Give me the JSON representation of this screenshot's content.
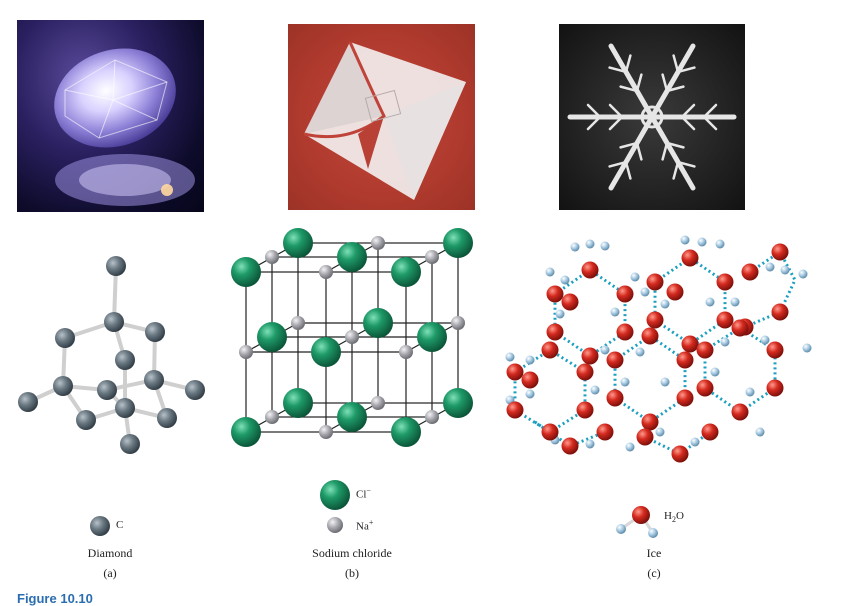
{
  "panels": {
    "a": {
      "name": "Diamond",
      "letter": "(a)",
      "legend": [
        {
          "symbol": "C",
          "color": "#5d6b75"
        }
      ]
    },
    "b": {
      "name": "Sodium chloride",
      "letter": "(b)",
      "legend": [
        {
          "symbol": "Cl",
          "charge": "−",
          "color": "#1f8f62"
        },
        {
          "symbol": "Na",
          "charge": "+",
          "color": "#a8a8ae"
        }
      ]
    },
    "c": {
      "name": "Ice",
      "letter": "(c)",
      "legend": [
        {
          "symbol": "H",
          "subscript": "2",
          "suffix": "O",
          "o_color": "#d22a20",
          "h_color": "#9ec3de"
        }
      ]
    }
  },
  "caption": "Figure 10.10",
  "colors": {
    "hbond": "#1a9fc0",
    "bond": "#d8d8d8"
  }
}
